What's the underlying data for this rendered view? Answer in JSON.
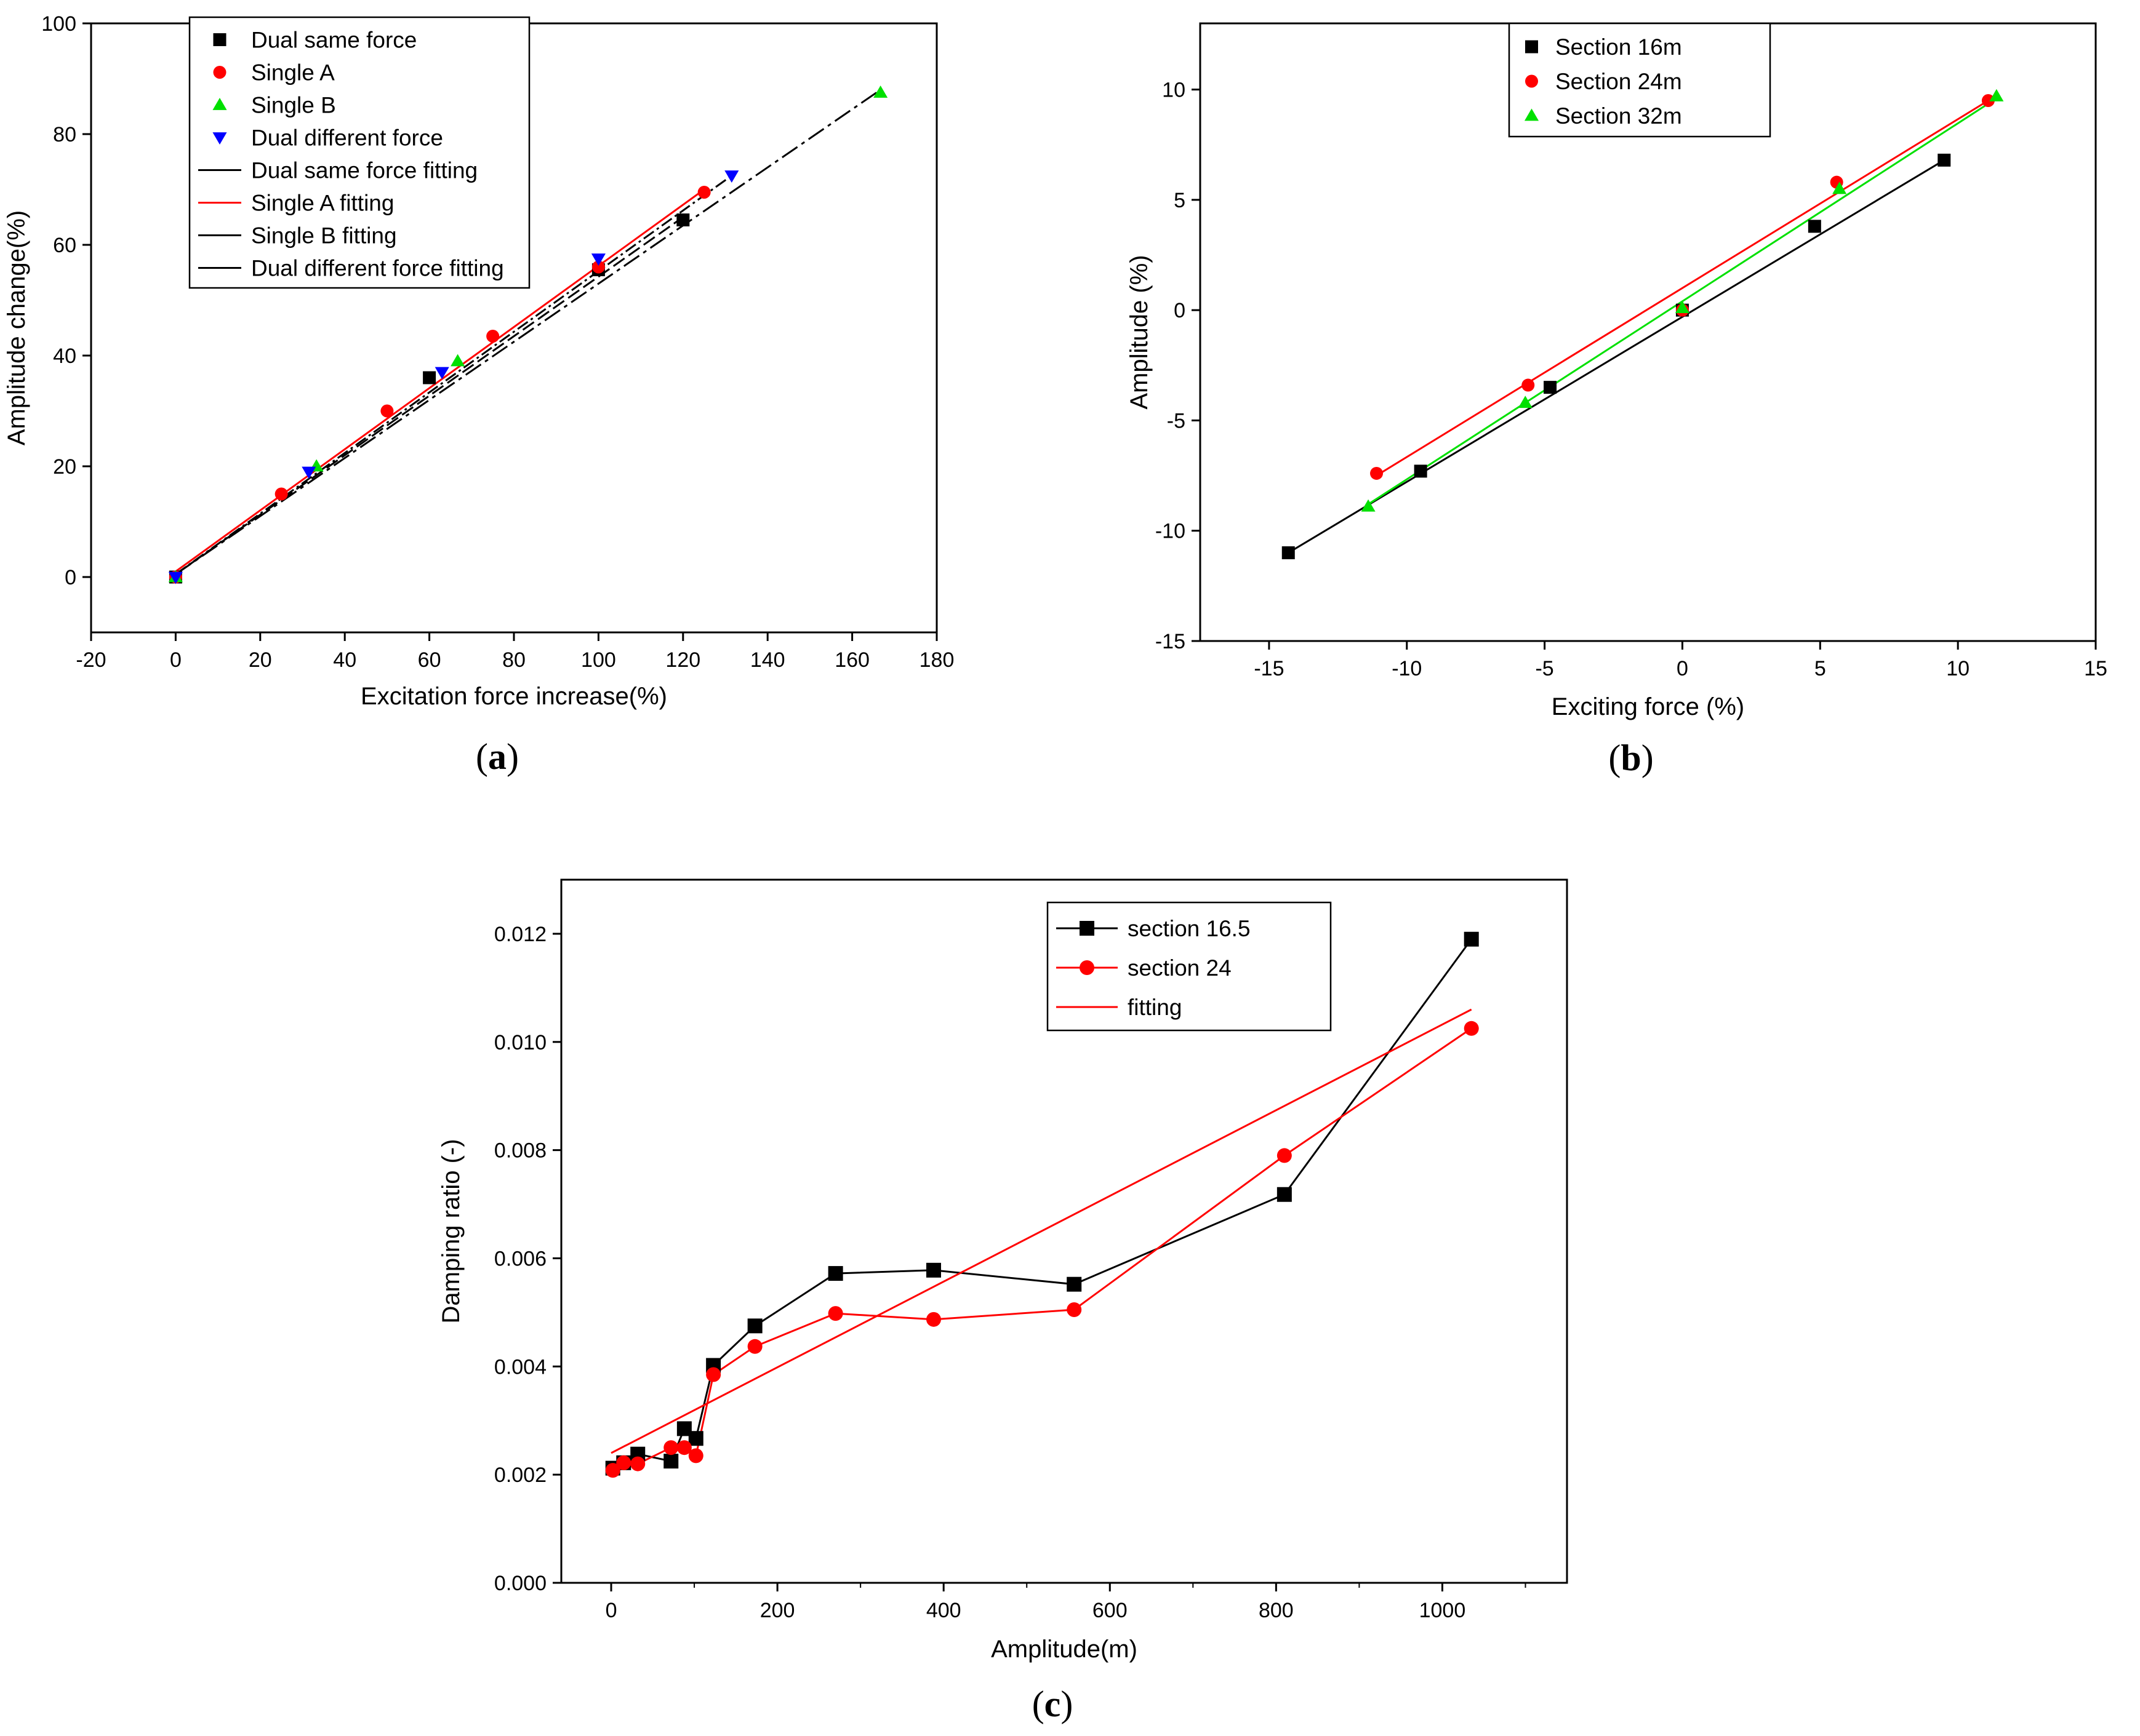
{
  "chart_data": [
    {
      "id": "a",
      "type": "scatter",
      "panel_label": "a",
      "xlabel": "Excitation force increase(%)",
      "ylabel": "Amplitude change(%)",
      "xlim": [
        -20,
        180
      ],
      "ylim": [
        -10,
        100
      ],
      "xticks": [
        -20,
        0,
        20,
        40,
        60,
        80,
        100,
        120,
        140,
        160,
        180
      ],
      "yticks": [
        0,
        20,
        40,
        60,
        80,
        100
      ],
      "legend_position": "top-left",
      "series": [
        {
          "name": "Dual same force",
          "kind": "marker",
          "marker": "square",
          "color": "#000000",
          "points": [
            [
              0,
              0
            ],
            [
              60,
              36
            ],
            [
              100,
              55.5
            ],
            [
              120,
              64.5
            ]
          ]
        },
        {
          "name": "Single A",
          "kind": "marker",
          "marker": "circle",
          "color": "#ff0000",
          "points": [
            [
              0,
              0
            ],
            [
              25,
              15
            ],
            [
              50,
              30
            ],
            [
              75,
              43.5
            ],
            [
              100,
              56
            ],
            [
              125,
              69.5
            ]
          ]
        },
        {
          "name": "Single B",
          "kind": "marker",
          "marker": "triangle-up",
          "color": "#00e000",
          "points": [
            [
              0,
              0
            ],
            [
              33.3,
              20
            ],
            [
              66.7,
              39
            ],
            [
              166.7,
              87.5
            ]
          ]
        },
        {
          "name": "Dual different force",
          "kind": "marker",
          "marker": "triangle-down",
          "color": "#0000ff",
          "points": [
            [
              0,
              0
            ],
            [
              31.5,
              19
            ],
            [
              63,
              37
            ],
            [
              100,
              57.5
            ],
            [
              131.5,
              72.5
            ]
          ]
        },
        {
          "name": "Dual same force fitting",
          "kind": "line",
          "color": "#000000",
          "points": [
            [
              0,
              0.5
            ],
            [
              120,
              65
            ]
          ]
        },
        {
          "name": "Single A fitting",
          "kind": "line",
          "color": "#ff0000",
          "points": [
            [
              0,
              1
            ],
            [
              125,
              70
            ]
          ]
        },
        {
          "name": "Single B fitting",
          "kind": "line",
          "color": "#000000",
          "points": [
            [
              0,
              0.5
            ],
            [
              166.7,
              88
            ]
          ]
        },
        {
          "name": "Dual different force fitting",
          "kind": "line",
          "color": "#000000",
          "points": [
            [
              0,
              0.5
            ],
            [
              131.5,
              72.5
            ]
          ]
        }
      ]
    },
    {
      "id": "b",
      "type": "line",
      "panel_label": "b",
      "xlabel": "Exciting force (%)",
      "ylabel": "Amplitude (%)",
      "xlim": [
        -17.5,
        15
      ],
      "ylim": [
        -15,
        13
      ],
      "xticks": [
        -15,
        -10,
        -5,
        0,
        5,
        10,
        15
      ],
      "yticks": [
        -15,
        -10,
        -5,
        0,
        5,
        10
      ],
      "legend_position": "top-center",
      "series": [
        {
          "name": "Section 16m",
          "kind": "marker",
          "marker": "square",
          "color": "#000000",
          "points": [
            [
              -14.3,
              -11
            ],
            [
              -9.5,
              -7.3
            ],
            [
              -4.8,
              -3.5
            ],
            [
              0,
              0
            ],
            [
              4.8,
              3.8
            ],
            [
              9.5,
              6.8
            ]
          ]
        },
        {
          "name": "Section 24m",
          "kind": "marker",
          "marker": "circle",
          "color": "#ff0000",
          "points": [
            [
              -11.1,
              -7.4
            ],
            [
              -5.6,
              -3.4
            ],
            [
              0,
              0
            ],
            [
              5.6,
              5.8
            ],
            [
              11.1,
              9.5
            ]
          ]
        },
        {
          "name": "Section 32m",
          "kind": "marker",
          "marker": "triangle-up",
          "color": "#00e000",
          "points": [
            [
              -11.4,
              -8.9
            ],
            [
              -5.7,
              -4.2
            ],
            [
              0,
              0.1
            ],
            [
              5.7,
              5.5
            ],
            [
              11.4,
              9.7
            ]
          ]
        },
        {
          "name": "",
          "kind": "line",
          "color": "#000000",
          "points": [
            [
              -14.3,
              -11
            ],
            [
              9.5,
              6.8
            ]
          ]
        },
        {
          "name": "",
          "kind": "line",
          "color": "#ff0000",
          "points": [
            [
              -11.1,
              -7.5
            ],
            [
              11.1,
              9.5
            ]
          ]
        },
        {
          "name": "",
          "kind": "line",
          "color": "#00e000",
          "points": [
            [
              -11.4,
              -8.8
            ],
            [
              11.4,
              9.6
            ]
          ]
        }
      ]
    },
    {
      "id": "c",
      "type": "line",
      "panel_label": "c",
      "xlabel": "Amplitude(m)",
      "ylabel": "Damping ratio  (-)",
      "xlim": [
        -60,
        1150
      ],
      "ylim": [
        0,
        0.013
      ],
      "xticks": [
        0,
        200,
        400,
        600,
        800,
        1000
      ],
      "xticks_minor": [
        100,
        300,
        500,
        700,
        900,
        1100
      ],
      "yticks": [
        0.0,
        0.002,
        0.004,
        0.006,
        0.008,
        0.01,
        0.012
      ],
      "ytick_labels": [
        "0.000",
        "0.002",
        "0.004",
        "0.006",
        "0.008",
        "0.010",
        "0.012"
      ],
      "legend_position": "top-center",
      "series": [
        {
          "name": "section 16.5",
          "kind": "line-marker",
          "marker": "square",
          "color": "#000000",
          "points": [
            [
              2,
              0.00212
            ],
            [
              15,
              0.00222
            ],
            [
              32,
              0.00238
            ],
            [
              72,
              0.00225
            ],
            [
              88,
              0.00285
            ],
            [
              102,
              0.00267
            ],
            [
              123,
              0.00402
            ],
            [
              173,
              0.00475
            ],
            [
              270,
              0.00572
            ],
            [
              388,
              0.00578
            ],
            [
              557,
              0.00552
            ],
            [
              810,
              0.00718
            ],
            [
              1035,
              0.0119
            ]
          ]
        },
        {
          "name": "section 24",
          "kind": "line-marker",
          "marker": "circle",
          "color": "#ff0000",
          "points": [
            [
              2,
              0.00208
            ],
            [
              15,
              0.00222
            ],
            [
              32,
              0.0022
            ],
            [
              72,
              0.0025
            ],
            [
              88,
              0.0025
            ],
            [
              102,
              0.00235
            ],
            [
              123,
              0.00385
            ],
            [
              173,
              0.00437
            ],
            [
              270,
              0.00498
            ],
            [
              388,
              0.00487
            ],
            [
              557,
              0.00505
            ],
            [
              810,
              0.0079
            ],
            [
              1035,
              0.01025
            ]
          ]
        },
        {
          "name": "fitting",
          "kind": "line",
          "color": "#ff0000",
          "points": [
            [
              0,
              0.0024
            ],
            [
              1035,
              0.0106
            ]
          ]
        }
      ]
    }
  ]
}
